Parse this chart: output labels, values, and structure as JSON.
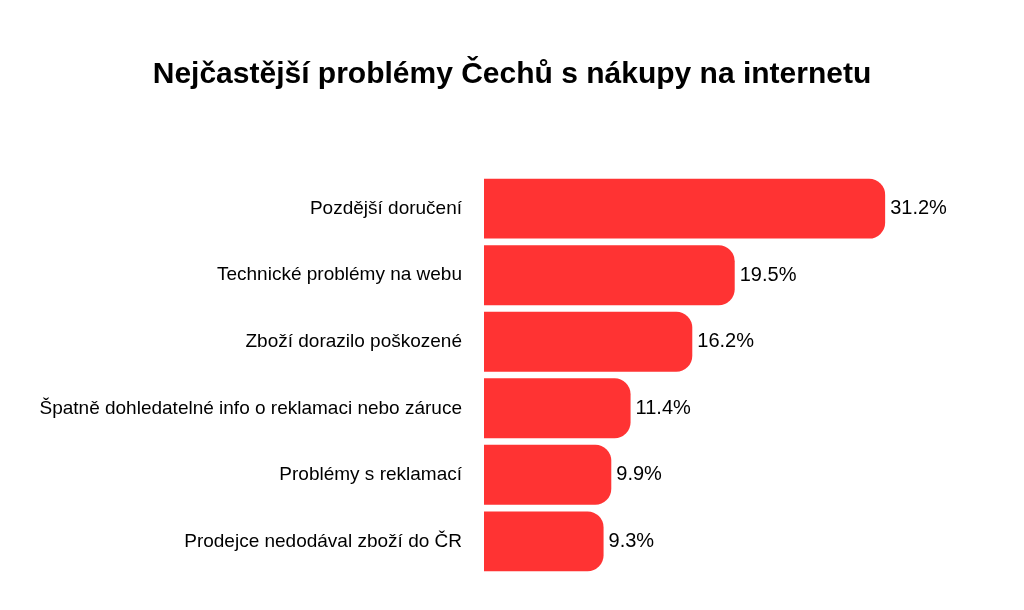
{
  "chart_data": {
    "type": "bar",
    "orientation": "horizontal",
    "title": "Nejčastější problémy Čechů s nákupy na internetu",
    "categories": [
      "Pozdější doručení",
      "Technické problémy na webu",
      "Zboží dorazilo poškozené",
      "Špatně dohledatelné info o reklamaci nebo záruce",
      "Problémy s reklamací",
      "Prodejce nedodával zboží do ČR"
    ],
    "values": [
      31.2,
      19.5,
      16.2,
      11.4,
      9.9,
      9.3
    ],
    "value_labels": [
      "31.2%",
      "19.5%",
      "16.2%",
      "11.4%",
      "9.9%",
      "9.3%"
    ],
    "color": "#ff3333",
    "legend": false
  }
}
